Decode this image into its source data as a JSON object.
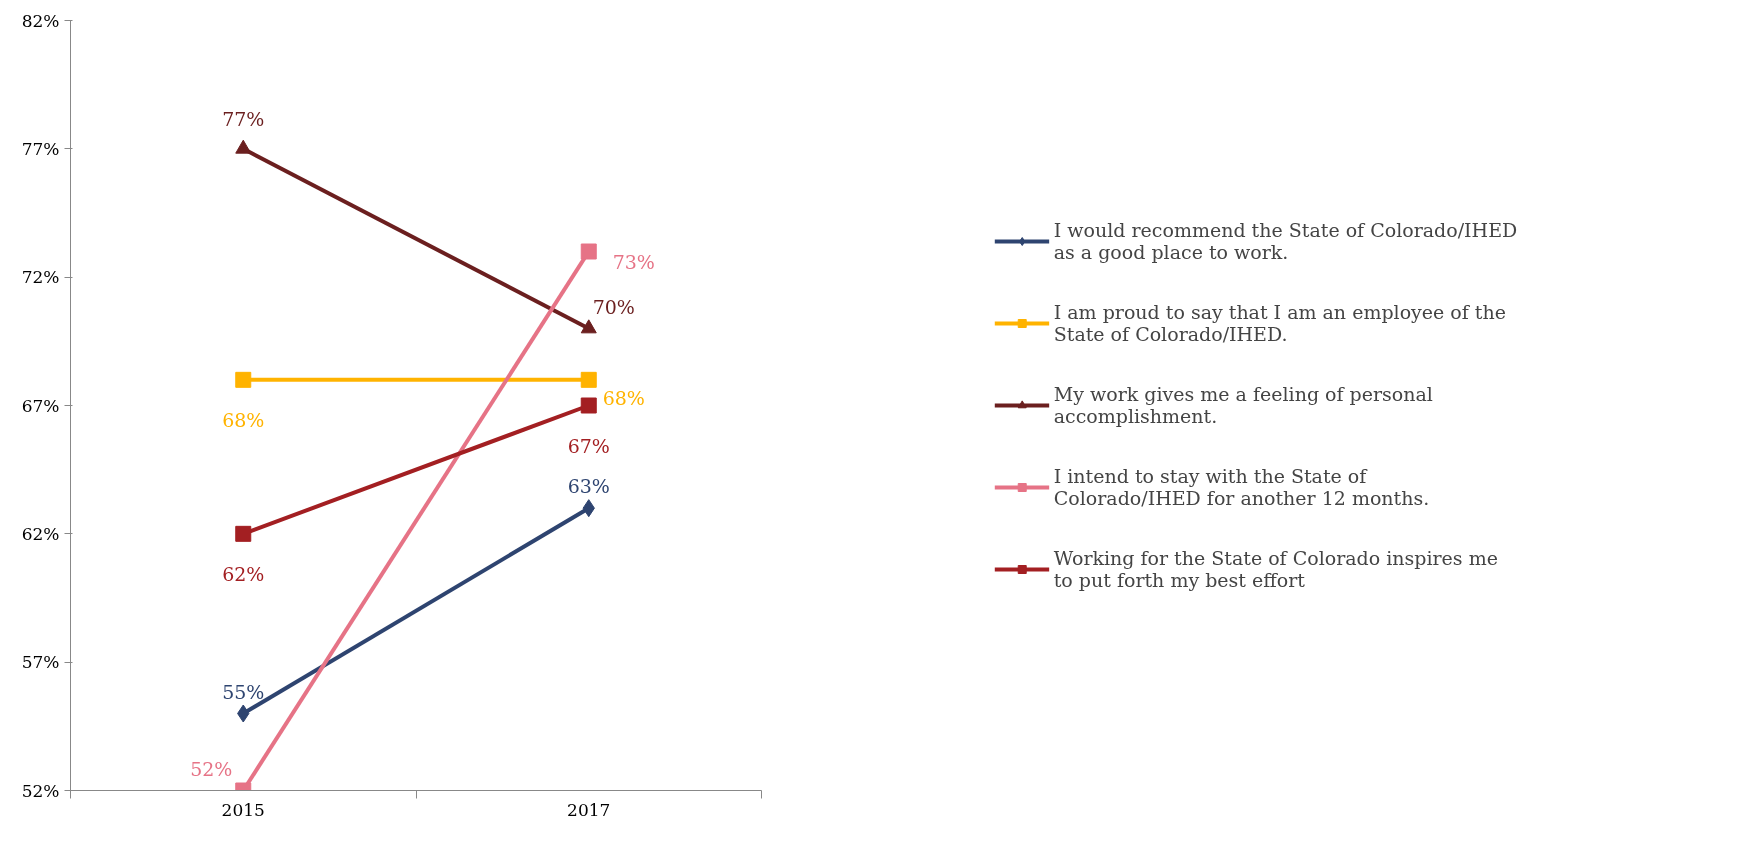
{
  "chart_data": {
    "type": "line",
    "categories": [
      "2015",
      "2017"
    ],
    "ylim": [
      52,
      82
    ],
    "yticks": [
      {
        "value": 52,
        "label": "52%"
      },
      {
        "value": 57,
        "label": "57%"
      },
      {
        "value": 62,
        "label": "62%"
      },
      {
        "value": 67,
        "label": "67%"
      },
      {
        "value": 72,
        "label": "72%"
      },
      {
        "value": 77,
        "label": "77%"
      },
      {
        "value": 82,
        "label": "82%"
      }
    ],
    "grid": false,
    "legend": "right",
    "data_labels": true,
    "series": [
      {
        "name": "I would recommend the State of Colorado/IHED as a good place to work.",
        "color": "#2e4470",
        "marker": "diamond",
        "values": [
          55,
          63
        ],
        "value_labels": [
          "55%",
          "63%"
        ]
      },
      {
        "name": "I am proud to say that I am an employee of the State of Colorado/IHED.",
        "color": "#ffb300",
        "marker": "square",
        "values": [
          68,
          68
        ],
        "value_labels": [
          "68%",
          "68%"
        ]
      },
      {
        "name": "My work gives me a feeling of personal accomplishment.",
        "color": "#6b1f1f",
        "marker": "triangle",
        "values": [
          77,
          70
        ],
        "value_labels": [
          "77%",
          "70%"
        ]
      },
      {
        "name": "I intend to stay with the State of Colorado/IHED for another 12 months.",
        "color": "#e67386",
        "marker": "square",
        "values": [
          52,
          73
        ],
        "value_labels": [
          "52%",
          "73%"
        ]
      },
      {
        "name": "Working for the State of Colorado inspires me to put forth my best effort",
        "color": "#a31f22",
        "marker": "square",
        "values": [
          62,
          67
        ],
        "value_labels": [
          "62%",
          "67%"
        ]
      }
    ]
  }
}
